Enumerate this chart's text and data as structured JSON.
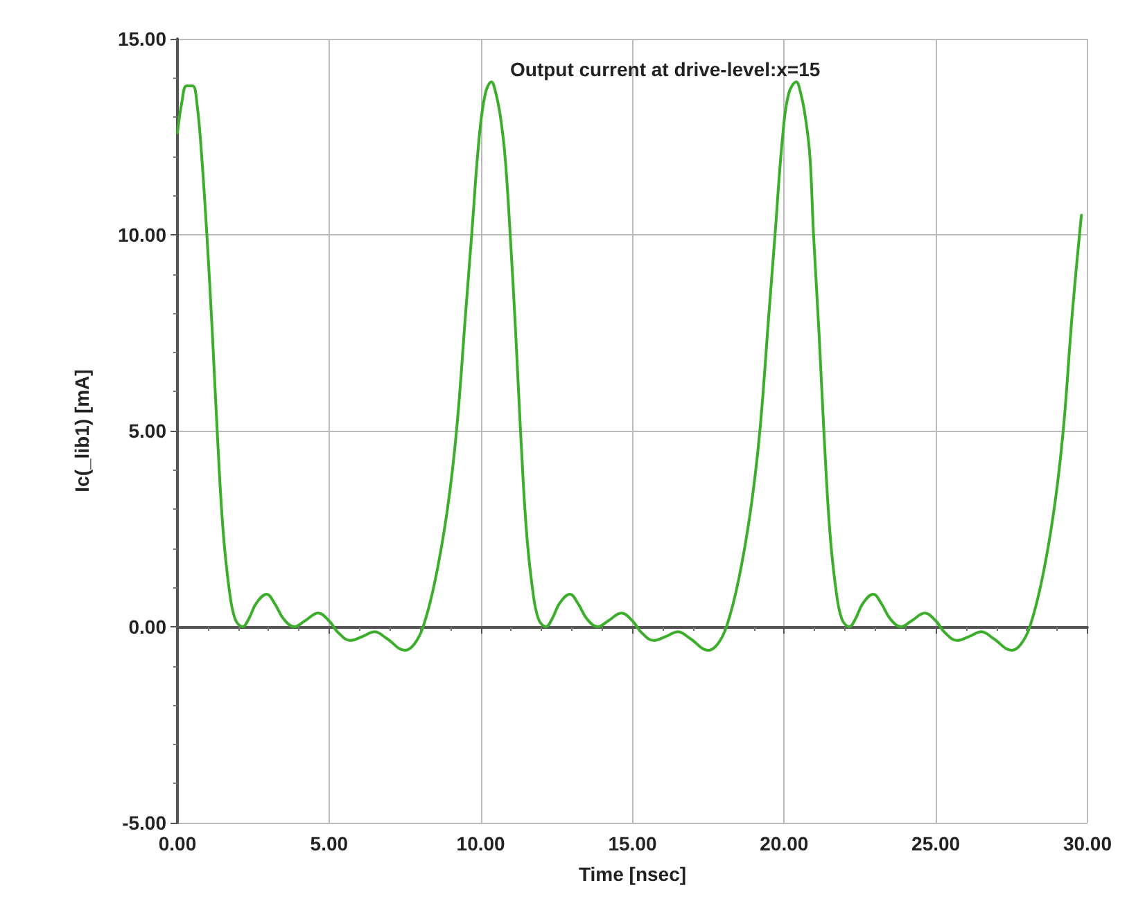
{
  "chart_data": {
    "type": "line",
    "title": "Output current at drive-level:x=15",
    "xlabel": "Time [nsec]",
    "ylabel": "Ic(_lib1) [mA]",
    "xlim": [
      0,
      30
    ],
    "ylim": [
      -5,
      15
    ],
    "xticks": [
      {
        "value": 0,
        "label": "0.00"
      },
      {
        "value": 5,
        "label": "5.00"
      },
      {
        "value": 10,
        "label": "10.00"
      },
      {
        "value": 15,
        "label": "15.00"
      },
      {
        "value": 20,
        "label": "20.00"
      },
      {
        "value": 25,
        "label": "25.00"
      },
      {
        "value": 30,
        "label": "30.00"
      }
    ],
    "yticks": [
      {
        "value": -5,
        "label": "-5.00"
      },
      {
        "value": 0,
        "label": "0.00"
      },
      {
        "value": 5,
        "label": "5.00"
      },
      {
        "value": 10,
        "label": "10.00"
      },
      {
        "value": 15,
        "label": "15.00"
      }
    ],
    "grid": true,
    "marker": "none",
    "line_style": "solid",
    "series": [
      {
        "color": "#3cae2c",
        "x": [
          0,
          0.15,
          0.3,
          0.5,
          0.65,
          0.8,
          0.97,
          1.15,
          1.31,
          1.5,
          1.7,
          1.9,
          2.15,
          2.35,
          2.6,
          2.94,
          3.2,
          3.5,
          3.86,
          4.2,
          4.64,
          5.0,
          5.3,
          5.7,
          6.1,
          6.5,
          6.9,
          7.5,
          7.8,
          8.1,
          8.5,
          8.9,
          9.2,
          9.5,
          9.7,
          9.95,
          10.15,
          10.35,
          10.5,
          10.65,
          10.8,
          10.97,
          11.15,
          11.31,
          11.5,
          11.7,
          11.9,
          12.15,
          12.35,
          12.6,
          12.94,
          13.2,
          13.5,
          13.86,
          14.2,
          14.64,
          15.0,
          15.3,
          15.7,
          16.1,
          16.5,
          16.9,
          17.5,
          17.8,
          18.1,
          18.5,
          18.9,
          19.2,
          19.5,
          19.7,
          19.95,
          20.15,
          20.4,
          20.55,
          20.7,
          20.85,
          20.97,
          21.15,
          21.31,
          21.5,
          21.7,
          21.9,
          22.15,
          22.35,
          22.6,
          22.94,
          23.2,
          23.5,
          23.86,
          24.2,
          24.64,
          25.0,
          25.3,
          25.7,
          26.1,
          26.5,
          26.9,
          27.5,
          27.8,
          28.1,
          28.5,
          28.9,
          29.2,
          29.5,
          29.8
        ],
        "values": [
          12.6,
          13.4,
          13.8,
          13.8,
          13.3,
          12.0,
          10,
          7.5,
          5,
          2.5,
          1.0,
          0.2,
          0.0,
          0.2,
          0.6,
          0.83,
          0.6,
          0.2,
          0.0,
          0.15,
          0.35,
          0.15,
          -0.15,
          -0.35,
          -0.25,
          -0.13,
          -0.3,
          -0.6,
          -0.45,
          0,
          1.2,
          3.0,
          5,
          8.0,
          10,
          12.5,
          13.6,
          13.9,
          13.6,
          13.0,
          12.0,
          10,
          7.5,
          5,
          2.5,
          1.0,
          0.2,
          0.0,
          0.2,
          0.6,
          0.83,
          0.6,
          0.2,
          0.0,
          0.15,
          0.35,
          0.15,
          -0.15,
          -0.35,
          -0.25,
          -0.13,
          -0.3,
          -0.6,
          -0.45,
          0,
          1.2,
          3.0,
          5,
          8.0,
          10,
          12.5,
          13.6,
          13.9,
          13.6,
          13.0,
          12.0,
          10,
          7.5,
          5,
          2.5,
          1.0,
          0.2,
          0.0,
          0.2,
          0.6,
          0.83,
          0.6,
          0.2,
          0.0,
          0.15,
          0.35,
          0.15,
          -0.15,
          -0.35,
          -0.25,
          -0.13,
          -0.3,
          -0.6,
          -0.45,
          0,
          1.2,
          3.0,
          5,
          8.0,
          10.5
        ]
      }
    ]
  }
}
